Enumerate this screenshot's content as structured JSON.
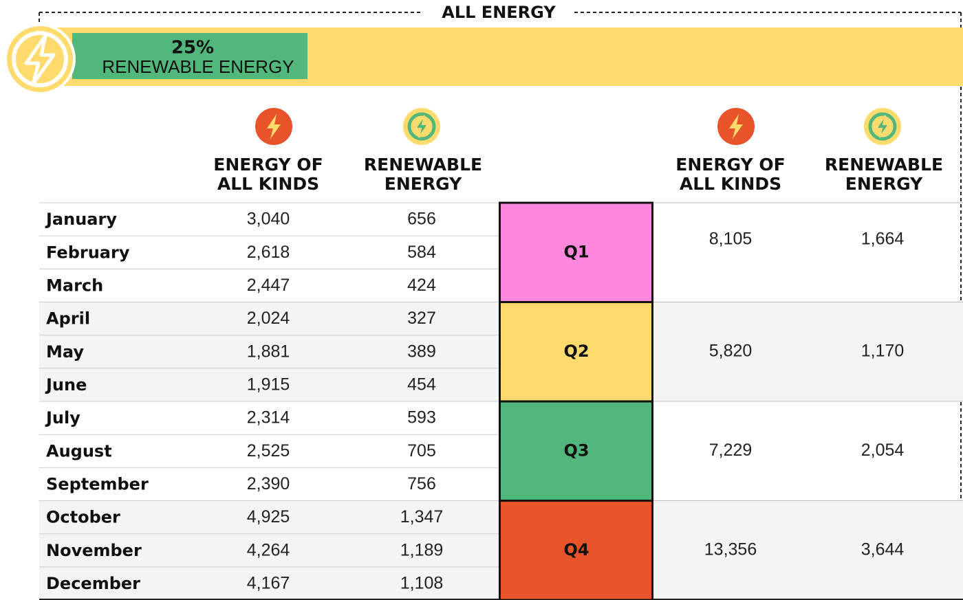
{
  "header": {
    "title": "ALL ENERGY",
    "badge_value": "25%",
    "badge_label": "RENEWABLE ENERGY"
  },
  "monthly_columns": [
    [
      "ENERGY OF",
      "ALL KINDS"
    ],
    [
      "RENEWABLE",
      "ENERGY"
    ]
  ],
  "quarterly_columns": [
    [
      "ENERGY OF",
      "ALL KINDS"
    ],
    [
      "RENEWABLE",
      "ENERGY"
    ]
  ],
  "months": [
    {
      "name": "January",
      "all": "3,040",
      "renewable": "656"
    },
    {
      "name": "February",
      "all": "2,618",
      "renewable": "584"
    },
    {
      "name": "March",
      "all": "2,447",
      "renewable": "424"
    },
    {
      "name": "April",
      "all": "2,024",
      "renewable": "327"
    },
    {
      "name": "May",
      "all": "1,881",
      "renewable": "389"
    },
    {
      "name": "June",
      "all": "1,915",
      "renewable": "454"
    },
    {
      "name": "July",
      "all": "2,314",
      "renewable": "593"
    },
    {
      "name": "August",
      "all": "2,525",
      "renewable": "705"
    },
    {
      "name": "September",
      "all": "2,390",
      "renewable": "756"
    },
    {
      "name": "October",
      "all": "4,925",
      "renewable": "1,347"
    },
    {
      "name": "November",
      "all": "4,264",
      "renewable": "1,189"
    },
    {
      "name": "December",
      "all": "4,167",
      "renewable": "1,108"
    }
  ],
  "quarters": [
    {
      "label": "Q1",
      "all": "8,105",
      "renewable": "1,664",
      "color": "#ff87dc"
    },
    {
      "label": "Q2",
      "all": "5,820",
      "renewable": "1,170",
      "color": "#ffdb6e"
    },
    {
      "label": "Q3",
      "all": "7,229",
      "renewable": "2,054",
      "color": "#52b77a"
    },
    {
      "label": "Q4",
      "all": "13,356",
      "renewable": "3,644",
      "color": "#e8542a"
    }
  ]
}
